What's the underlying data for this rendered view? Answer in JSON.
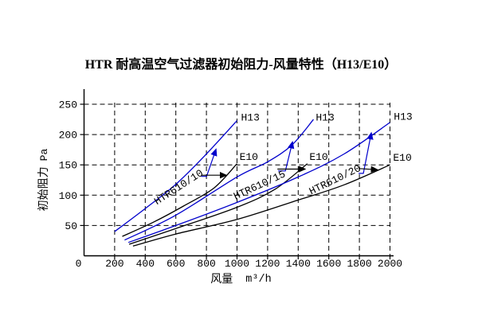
{
  "title": "HTR 耐高温空气过滤器初始阻力-风量特性（H13/E10）",
  "chart_data": {
    "type": "line",
    "title": "HTR 耐高温空气过滤器初始阻力-风量特性（H13/E10）",
    "xlabel": "风量 m³/h",
    "xlabel_cn": "风量",
    "xlabel_unit": "m³/h",
    "ylabel_cn": "初始阻力",
    "ylabel_unit": "Pa",
    "ylabel": "初始阻力 Pa",
    "xlim": [
      0,
      2000
    ],
    "ylim": [
      0,
      273
    ],
    "x_ticks": [
      0,
      200,
      400,
      600,
      800,
      1000,
      1200,
      1400,
      1600,
      1800,
      2000
    ],
    "y_ticks": [
      50,
      100,
      150,
      200,
      250
    ],
    "grid": "dashed-both",
    "legend_position": "inline-curve-labels",
    "colors": {
      "h13": "#0000cc",
      "e10": "#000000",
      "grid": "#000000"
    },
    "series": [
      {
        "id": "h13-610-10",
        "model": "HTR610/10",
        "grade": "H13",
        "color": "#0000cc",
        "points": [
          [
            200,
            40
          ],
          [
            400,
            78
          ],
          [
            600,
            118
          ],
          [
            800,
            168
          ],
          [
            1000,
            223
          ]
        ]
      },
      {
        "id": "e10-610-10",
        "model": "HTR610/10",
        "grade": "E10",
        "color": "#000000",
        "points": [
          [
            250,
            32
          ],
          [
            450,
            55
          ],
          [
            650,
            82
          ],
          [
            850,
            112
          ],
          [
            1000,
            152
          ]
        ]
      },
      {
        "id": "h13-610-15",
        "model": "HTR610/15",
        "grade": "H13",
        "color": "#0000cc",
        "points": [
          [
            265,
            26
          ],
          [
            600,
            67
          ],
          [
            1000,
            130
          ],
          [
            1200,
            155
          ],
          [
            1360,
            183
          ],
          [
            1500,
            225
          ]
        ]
      },
      {
        "id": "e10-610-15",
        "model": "HTR610/15",
        "grade": "E10",
        "color": "#000000",
        "points": [
          [
            295,
            19
          ],
          [
            600,
            45
          ],
          [
            1000,
            80
          ],
          [
            1250,
            110
          ],
          [
            1460,
            152
          ]
        ]
      },
      {
        "id": "h13-610-20",
        "model": "HTR610/20",
        "grade": "H13",
        "color": "#0000cc",
        "points": [
          [
            290,
            22
          ],
          [
            600,
            50
          ],
          [
            1000,
            88
          ],
          [
            1400,
            130
          ],
          [
            1700,
            168
          ],
          [
            2000,
            220
          ]
        ]
      },
      {
        "id": "e10-610-20",
        "model": "HTR610/20",
        "grade": "E10",
        "color": "#000000",
        "points": [
          [
            320,
            16
          ],
          [
            600,
            36
          ],
          [
            1000,
            60
          ],
          [
            1400,
            92
          ],
          [
            1700,
            117
          ],
          [
            2000,
            150
          ]
        ]
      }
    ],
    "series_labels": [
      {
        "text": "H13",
        "flow": 1087,
        "pa": 229,
        "color": "#0000cc"
      },
      {
        "text": "H13",
        "flow": 1576,
        "pa": 229,
        "color": "#0000cc"
      },
      {
        "text": "H13",
        "flow": 2086,
        "pa": 230,
        "color": "#0000cc"
      },
      {
        "text": "E10",
        "flow": 1077,
        "pa": 164,
        "color": "#000000"
      },
      {
        "text": "E10",
        "flow": 1534,
        "pa": 164,
        "color": "#000000"
      },
      {
        "text": "E10",
        "flow": 2081,
        "pa": 163,
        "color": "#000000"
      }
    ],
    "model_labels": [
      {
        "text": "HTR610/10",
        "flow": 629,
        "pa": 109,
        "angle": -33
      },
      {
        "text": "HTR610/15",
        "flow": 1155,
        "pa": 112,
        "angle": -25
      },
      {
        "text": "HTR610/20",
        "flow": 1649,
        "pa": 121,
        "angle": -26
      }
    ],
    "leader_arrows": [
      {
        "color": "#0000cc",
        "points": [
          [
            765,
            131
          ],
          [
            801,
            131
          ],
          [
            863,
            176
          ]
        ]
      },
      {
        "color": "#000000",
        "points": [
          [
            765,
            133
          ],
          [
            931,
            133
          ]
        ]
      },
      {
        "color": "#0000cc",
        "points": [
          [
            1269,
            140
          ],
          [
            1316,
            140
          ],
          [
            1363,
            188
          ]
        ]
      },
      {
        "color": "#000000",
        "points": [
          [
            1264,
            143
          ],
          [
            1446,
            143
          ]
        ]
      },
      {
        "color": "#0000cc",
        "points": [
          [
            1795,
            136
          ],
          [
            1826,
            136
          ],
          [
            1878,
            203
          ]
        ]
      },
      {
        "color": "#000000",
        "points": [
          [
            1795,
            144
          ],
          [
            1919,
            142
          ]
        ]
      }
    ]
  }
}
